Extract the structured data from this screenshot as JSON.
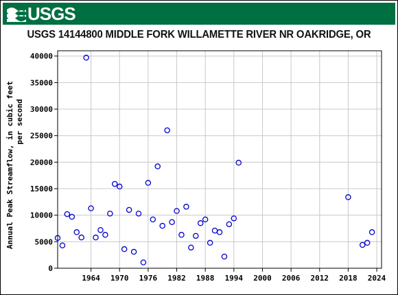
{
  "header": {
    "logo_text": "USGS",
    "brand_color": "#006f41"
  },
  "chart_data": {
    "type": "scatter",
    "title": "USGS 14144800 MIDDLE FORK WILLAMETTE RIVER NR OAKRIDGE, OR",
    "ylabel_line1": "Annual Peak Streamflow, in cubic feet",
    "ylabel_line2": "per second",
    "xlabel": "",
    "xlim": [
      1957,
      2025
    ],
    "ylim": [
      0,
      41000
    ],
    "x_ticks": [
      1964,
      1970,
      1976,
      1982,
      1988,
      1994,
      2000,
      2006,
      2012,
      2018,
      2024
    ],
    "y_ticks": [
      0,
      5000,
      10000,
      15000,
      20000,
      25000,
      30000,
      35000,
      40000
    ],
    "grid": true,
    "marker_color": "#0000cc",
    "series": [
      {
        "points": [
          [
            1957,
            5700
          ],
          [
            1958,
            4300
          ],
          [
            1959,
            10200
          ],
          [
            1960,
            9700
          ],
          [
            1961,
            6800
          ],
          [
            1962,
            5800
          ],
          [
            1963,
            39700
          ],
          [
            1964,
            11300
          ],
          [
            1965,
            5800
          ],
          [
            1966,
            7200
          ],
          [
            1967,
            6300
          ],
          [
            1968,
            10300
          ],
          [
            1969,
            15900
          ],
          [
            1970,
            15400
          ],
          [
            1971,
            3600
          ],
          [
            1972,
            11000
          ],
          [
            1973,
            3100
          ],
          [
            1974,
            10300
          ],
          [
            1975,
            1100
          ],
          [
            1976,
            16100
          ],
          [
            1977,
            9200
          ],
          [
            1978,
            19200
          ],
          [
            1979,
            8000
          ],
          [
            1980,
            26000
          ],
          [
            1981,
            8700
          ],
          [
            1982,
            10800
          ],
          [
            1983,
            6300
          ],
          [
            1984,
            11600
          ],
          [
            1985,
            3900
          ],
          [
            1986,
            6100
          ],
          [
            1987,
            8500
          ],
          [
            1988,
            9200
          ],
          [
            1989,
            4800
          ],
          [
            1990,
            7100
          ],
          [
            1991,
            6800
          ],
          [
            1992,
            2200
          ],
          [
            1993,
            8300
          ],
          [
            1994,
            9400
          ],
          [
            1995,
            19900
          ],
          [
            2018,
            13400
          ],
          [
            2021,
            4400
          ],
          [
            2022,
            4800
          ],
          [
            2023,
            6800
          ]
        ]
      }
    ]
  }
}
